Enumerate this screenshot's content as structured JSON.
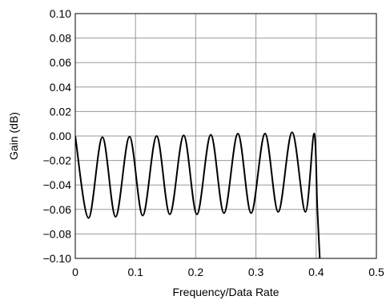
{
  "chart_data": {
    "type": "line",
    "title": "",
    "xlabel": "Frequency/Data Rate",
    "ylabel": "Gain (dB)",
    "xlim": [
      0,
      0.5
    ],
    "ylim": [
      -0.1,
      0.1
    ],
    "x_ticks": [
      0,
      0.1,
      0.2,
      0.3,
      0.4,
      0.5
    ],
    "x_tick_labels": [
      "0",
      "0.1",
      "0.2",
      "0.3",
      "0.4",
      "0.5"
    ],
    "y_ticks": [
      0.1,
      0.08,
      0.06,
      0.04,
      0.02,
      0.0,
      -0.02,
      -0.04,
      -0.06,
      -0.08,
      -0.1
    ],
    "y_tick_labels": [
      "0.10",
      "0.08",
      "0.06",
      "0.04",
      "0.02",
      "0.00",
      "−0.02",
      "−0.04",
      "−0.06",
      "−0.08",
      "−0.10"
    ],
    "grid": true,
    "colors": {
      "line": "#000000",
      "grid": "#999999",
      "frame": "#000000"
    },
    "series": [
      {
        "x": [
          0.0,
          0.022,
          0.045,
          0.067,
          0.09,
          0.112,
          0.135,
          0.157,
          0.18,
          0.202,
          0.225,
          0.247,
          0.27,
          0.292,
          0.315,
          0.337,
          0.36,
          0.382,
          0.3965,
          0.402,
          0.406
        ],
        "y": [
          0.0,
          -0.067,
          -0.001,
          -0.066,
          -0.0005,
          -0.065,
          0.0,
          -0.064,
          0.0005,
          -0.064,
          0.001,
          -0.063,
          0.002,
          -0.063,
          0.002,
          -0.062,
          0.003,
          -0.062,
          0.002,
          -0.06,
          -0.1
        ]
      }
    ]
  }
}
